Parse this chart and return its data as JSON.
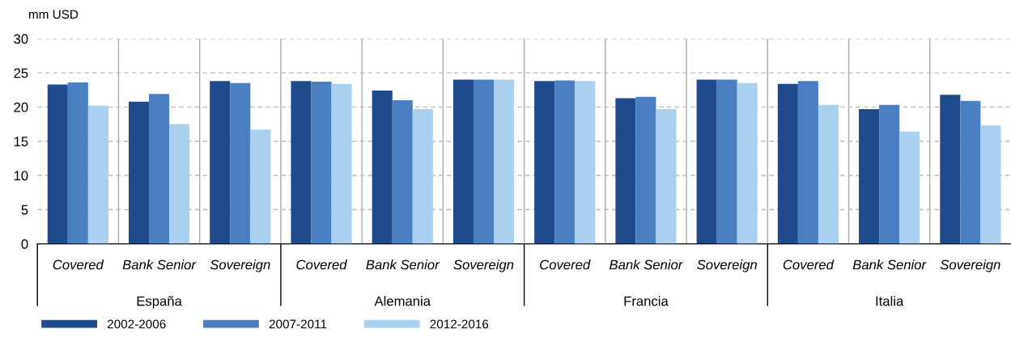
{
  "chart_data": {
    "type": "bar",
    "ylabel": "mm USD",
    "categories": [
      "Covered",
      "Bank Senior",
      "Sovereign",
      "Covered",
      "Bank Senior",
      "Sovereign",
      "Covered",
      "Bank Senior",
      "Sovereign",
      "Covered",
      "Bank Senior",
      "Sovereign"
    ],
    "annotations": [
      "España",
      "Alemania",
      "Francia",
      "Italia"
    ],
    "series": [
      {
        "name": "2002-2006",
        "color": "#1f4a8c",
        "values": [
          23.3,
          20.8,
          23.8,
          23.8,
          22.4,
          24.0,
          23.8,
          21.3,
          24.0,
          23.4,
          19.7,
          21.8
        ]
      },
      {
        "name": "2007-2011",
        "color": "#4a80c2",
        "values": [
          23.6,
          21.9,
          23.5,
          23.7,
          21.0,
          24.0,
          23.9,
          21.5,
          24.0,
          23.8,
          20.3,
          20.9
        ]
      },
      {
        "name": "2012-2016",
        "color": "#a9d0ef",
        "values": [
          20.2,
          17.5,
          16.7,
          23.4,
          19.7,
          24.0,
          23.8,
          19.7,
          23.5,
          20.3,
          16.4,
          17.3
        ]
      }
    ],
    "ylim": [
      0,
      30
    ],
    "yticks": [
      0,
      5,
      10,
      15,
      20,
      25,
      30
    ],
    "grid": true,
    "legend": "bottom left"
  }
}
